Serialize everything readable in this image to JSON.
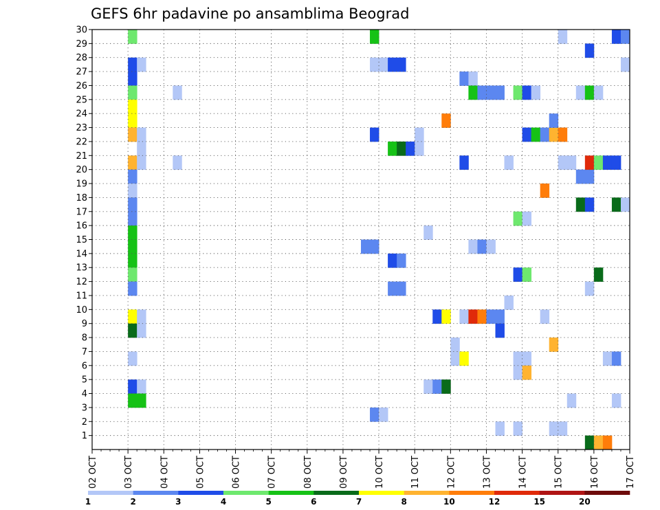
{
  "chart_data": {
    "type": "heatmap",
    "title": "GEFS 6hr padavine po ansamblima Beograd",
    "xlabel": "",
    "ylabel": "",
    "x_ticks": [
      "02 OCT",
      "03 OCT",
      "04 OCT",
      "05 OCT",
      "06 OCT",
      "07 OCT",
      "08 OCT",
      "09 OCT",
      "10 OCT",
      "11 OCT",
      "12 OCT",
      "13 OCT",
      "14 OCT",
      "15 OCT",
      "16 OCT",
      "17 OCT"
    ],
    "y_ticks": [
      "1",
      "2",
      "3",
      "4",
      "5",
      "6",
      "7",
      "8",
      "9",
      "10",
      "11",
      "12",
      "13",
      "14",
      "15",
      "16",
      "17",
      "18",
      "19",
      "20",
      "21",
      "22",
      "23",
      "24",
      "25",
      "26",
      "27",
      "28",
      "29",
      "30"
    ],
    "xlim": [
      0,
      60
    ],
    "ylim": [
      0,
      30
    ],
    "grid": true,
    "color_levels": [
      "1",
      "2",
      "3",
      "4",
      "5",
      "6",
      "7",
      "8",
      "10",
      "12",
      "15",
      "20"
    ],
    "colors": [
      "#b3c7f7",
      "#5c87f0",
      "#1f4ce8",
      "#6ee86e",
      "#16c216",
      "#096b1a",
      "#ffff00",
      "#ffb330",
      "#ff7d0a",
      "#e02a0a",
      "#b01414",
      "#6e0b0b"
    ],
    "cells": [
      {
        "x": 4,
        "y": 29,
        "level": 4
      },
      {
        "x": 4,
        "y": 27,
        "level": 3
      },
      {
        "x": 5,
        "y": 27,
        "level": 1
      },
      {
        "x": 4,
        "y": 26,
        "level": 3
      },
      {
        "x": 4,
        "y": 25,
        "level": 4
      },
      {
        "x": 4,
        "y": 24,
        "level": 7
      },
      {
        "x": 4,
        "y": 23,
        "level": 7
      },
      {
        "x": 4,
        "y": 22,
        "level": 8
      },
      {
        "x": 5,
        "y": 22,
        "level": 1
      },
      {
        "x": 5,
        "y": 21,
        "level": 1
      },
      {
        "x": 4,
        "y": 20,
        "level": 8
      },
      {
        "x": 5,
        "y": 20,
        "level": 1
      },
      {
        "x": 4,
        "y": 19,
        "level": 2
      },
      {
        "x": 4,
        "y": 18,
        "level": 1
      },
      {
        "x": 4,
        "y": 17,
        "level": 2
      },
      {
        "x": 4,
        "y": 16,
        "level": 2
      },
      {
        "x": 4,
        "y": 15,
        "level": 5
      },
      {
        "x": 4,
        "y": 14,
        "level": 5
      },
      {
        "x": 4,
        "y": 13,
        "level": 5
      },
      {
        "x": 4,
        "y": 12,
        "level": 4
      },
      {
        "x": 4,
        "y": 11,
        "level": 2
      },
      {
        "x": 4,
        "y": 9,
        "level": 7
      },
      {
        "x": 5,
        "y": 9,
        "level": 1
      },
      {
        "x": 4,
        "y": 8,
        "level": 6
      },
      {
        "x": 5,
        "y": 8,
        "level": 1
      },
      {
        "x": 4,
        "y": 6,
        "level": 1
      },
      {
        "x": 4,
        "y": 4,
        "level": 3
      },
      {
        "x": 5,
        "y": 4,
        "level": 1
      },
      {
        "x": 4,
        "y": 3,
        "level": 5
      },
      {
        "x": 5,
        "y": 3,
        "level": 5
      },
      {
        "x": 9,
        "y": 25,
        "level": 1
      },
      {
        "x": 9,
        "y": 20,
        "level": 1
      },
      {
        "x": 31,
        "y": 29,
        "level": 5
      },
      {
        "x": 31,
        "y": 27,
        "level": 1
      },
      {
        "x": 32,
        "y": 27,
        "level": 1
      },
      {
        "x": 33,
        "y": 27,
        "level": 3
      },
      {
        "x": 34,
        "y": 27,
        "level": 3
      },
      {
        "x": 31,
        "y": 22,
        "level": 3
      },
      {
        "x": 33,
        "y": 21,
        "level": 5
      },
      {
        "x": 34,
        "y": 21,
        "level": 6
      },
      {
        "x": 35,
        "y": 21,
        "level": 3
      },
      {
        "x": 36,
        "y": 21,
        "level": 1
      },
      {
        "x": 36,
        "y": 22,
        "level": 1
      },
      {
        "x": 30,
        "y": 14,
        "level": 2
      },
      {
        "x": 31,
        "y": 14,
        "level": 2
      },
      {
        "x": 33,
        "y": 13,
        "level": 3
      },
      {
        "x": 34,
        "y": 13,
        "level": 2
      },
      {
        "x": 33,
        "y": 11,
        "level": 2
      },
      {
        "x": 34,
        "y": 11,
        "level": 2
      },
      {
        "x": 31,
        "y": 2,
        "level": 2
      },
      {
        "x": 32,
        "y": 2,
        "level": 1
      },
      {
        "x": 37,
        "y": 15,
        "level": 1
      },
      {
        "x": 37,
        "y": 4,
        "level": 1
      },
      {
        "x": 38,
        "y": 4,
        "level": 2
      },
      {
        "x": 39,
        "y": 4,
        "level": 6
      },
      {
        "x": 38,
        "y": 9,
        "level": 3
      },
      {
        "x": 39,
        "y": 9,
        "level": 7
      },
      {
        "x": 39,
        "y": 23,
        "level": 9
      },
      {
        "x": 40,
        "y": 7,
        "level": 1
      },
      {
        "x": 40,
        "y": 6,
        "level": 1
      },
      {
        "x": 41,
        "y": 6,
        "level": 7
      },
      {
        "x": 41,
        "y": 9,
        "level": 1
      },
      {
        "x": 41,
        "y": 20,
        "level": 3
      },
      {
        "x": 41,
        "y": 26,
        "level": 2
      },
      {
        "x": 42,
        "y": 26,
        "level": 1
      },
      {
        "x": 42,
        "y": 25,
        "level": 5
      },
      {
        "x": 43,
        "y": 25,
        "level": 2
      },
      {
        "x": 44,
        "y": 25,
        "level": 2
      },
      {
        "x": 45,
        "y": 25,
        "level": 2
      },
      {
        "x": 42,
        "y": 9,
        "level": 10
      },
      {
        "x": 43,
        "y": 9,
        "level": 9
      },
      {
        "x": 44,
        "y": 9,
        "level": 2
      },
      {
        "x": 45,
        "y": 9,
        "level": 2
      },
      {
        "x": 42,
        "y": 14,
        "level": 1
      },
      {
        "x": 43,
        "y": 14,
        "level": 2
      },
      {
        "x": 44,
        "y": 14,
        "level": 1
      },
      {
        "x": 45,
        "y": 8,
        "level": 3
      },
      {
        "x": 46,
        "y": 10,
        "level": 1
      },
      {
        "x": 46,
        "y": 20,
        "level": 1
      },
      {
        "x": 45,
        "y": 1,
        "level": 1
      },
      {
        "x": 47,
        "y": 25,
        "level": 4
      },
      {
        "x": 48,
        "y": 25,
        "level": 3
      },
      {
        "x": 49,
        "y": 25,
        "level": 1
      },
      {
        "x": 47,
        "y": 16,
        "level": 4
      },
      {
        "x": 48,
        "y": 16,
        "level": 1
      },
      {
        "x": 47,
        "y": 12,
        "level": 3
      },
      {
        "x": 48,
        "y": 12,
        "level": 4
      },
      {
        "x": 47,
        "y": 6,
        "level": 1
      },
      {
        "x": 48,
        "y": 6,
        "level": 1
      },
      {
        "x": 47,
        "y": 5,
        "level": 1
      },
      {
        "x": 48,
        "y": 5,
        "level": 8
      },
      {
        "x": 47,
        "y": 1,
        "level": 1
      },
      {
        "x": 48,
        "y": 22,
        "level": 3
      },
      {
        "x": 49,
        "y": 22,
        "level": 5
      },
      {
        "x": 50,
        "y": 22,
        "level": 2
      },
      {
        "x": 51,
        "y": 22,
        "level": 8
      },
      {
        "x": 52,
        "y": 22,
        "level": 9
      },
      {
        "x": 50,
        "y": 18,
        "level": 9
      },
      {
        "x": 50,
        "y": 9,
        "level": 1
      },
      {
        "x": 51,
        "y": 23,
        "level": 2
      },
      {
        "x": 51,
        "y": 7,
        "level": 8
      },
      {
        "x": 51,
        "y": 1,
        "level": 1
      },
      {
        "x": 52,
        "y": 1,
        "level": 1
      },
      {
        "x": 52,
        "y": 29,
        "level": 1
      },
      {
        "x": 52,
        "y": 20,
        "level": 1
      },
      {
        "x": 53,
        "y": 20,
        "level": 1
      },
      {
        "x": 53,
        "y": 3,
        "level": 1
      },
      {
        "x": 54,
        "y": 25,
        "level": 1
      },
      {
        "x": 55,
        "y": 25,
        "level": 5
      },
      {
        "x": 56,
        "y": 25,
        "level": 1
      },
      {
        "x": 54,
        "y": 19,
        "level": 2
      },
      {
        "x": 55,
        "y": 19,
        "level": 2
      },
      {
        "x": 54,
        "y": 17,
        "level": 6
      },
      {
        "x": 55,
        "y": 17,
        "level": 3
      },
      {
        "x": 55,
        "y": 28,
        "level": 3
      },
      {
        "x": 55,
        "y": 20,
        "level": 10
      },
      {
        "x": 56,
        "y": 20,
        "level": 4
      },
      {
        "x": 57,
        "y": 20,
        "level": 3
      },
      {
        "x": 58,
        "y": 20,
        "level": 3
      },
      {
        "x": 55,
        "y": 11,
        "level": 1
      },
      {
        "x": 56,
        "y": 12,
        "level": 6
      },
      {
        "x": 55,
        "y": 0,
        "level": 6
      },
      {
        "x": 56,
        "y": 0,
        "level": 8
      },
      {
        "x": 57,
        "y": 0,
        "level": 9
      },
      {
        "x": 57,
        "y": 6,
        "level": 1
      },
      {
        "x": 58,
        "y": 6,
        "level": 2
      },
      {
        "x": 58,
        "y": 3,
        "level": 1
      },
      {
        "x": 58,
        "y": 29,
        "level": 3
      },
      {
        "x": 59,
        "y": 29,
        "level": 2
      },
      {
        "x": 58,
        "y": 17,
        "level": 6
      },
      {
        "x": 59,
        "y": 17,
        "level": 1
      },
      {
        "x": 59,
        "y": 27,
        "level": 1
      }
    ]
  }
}
